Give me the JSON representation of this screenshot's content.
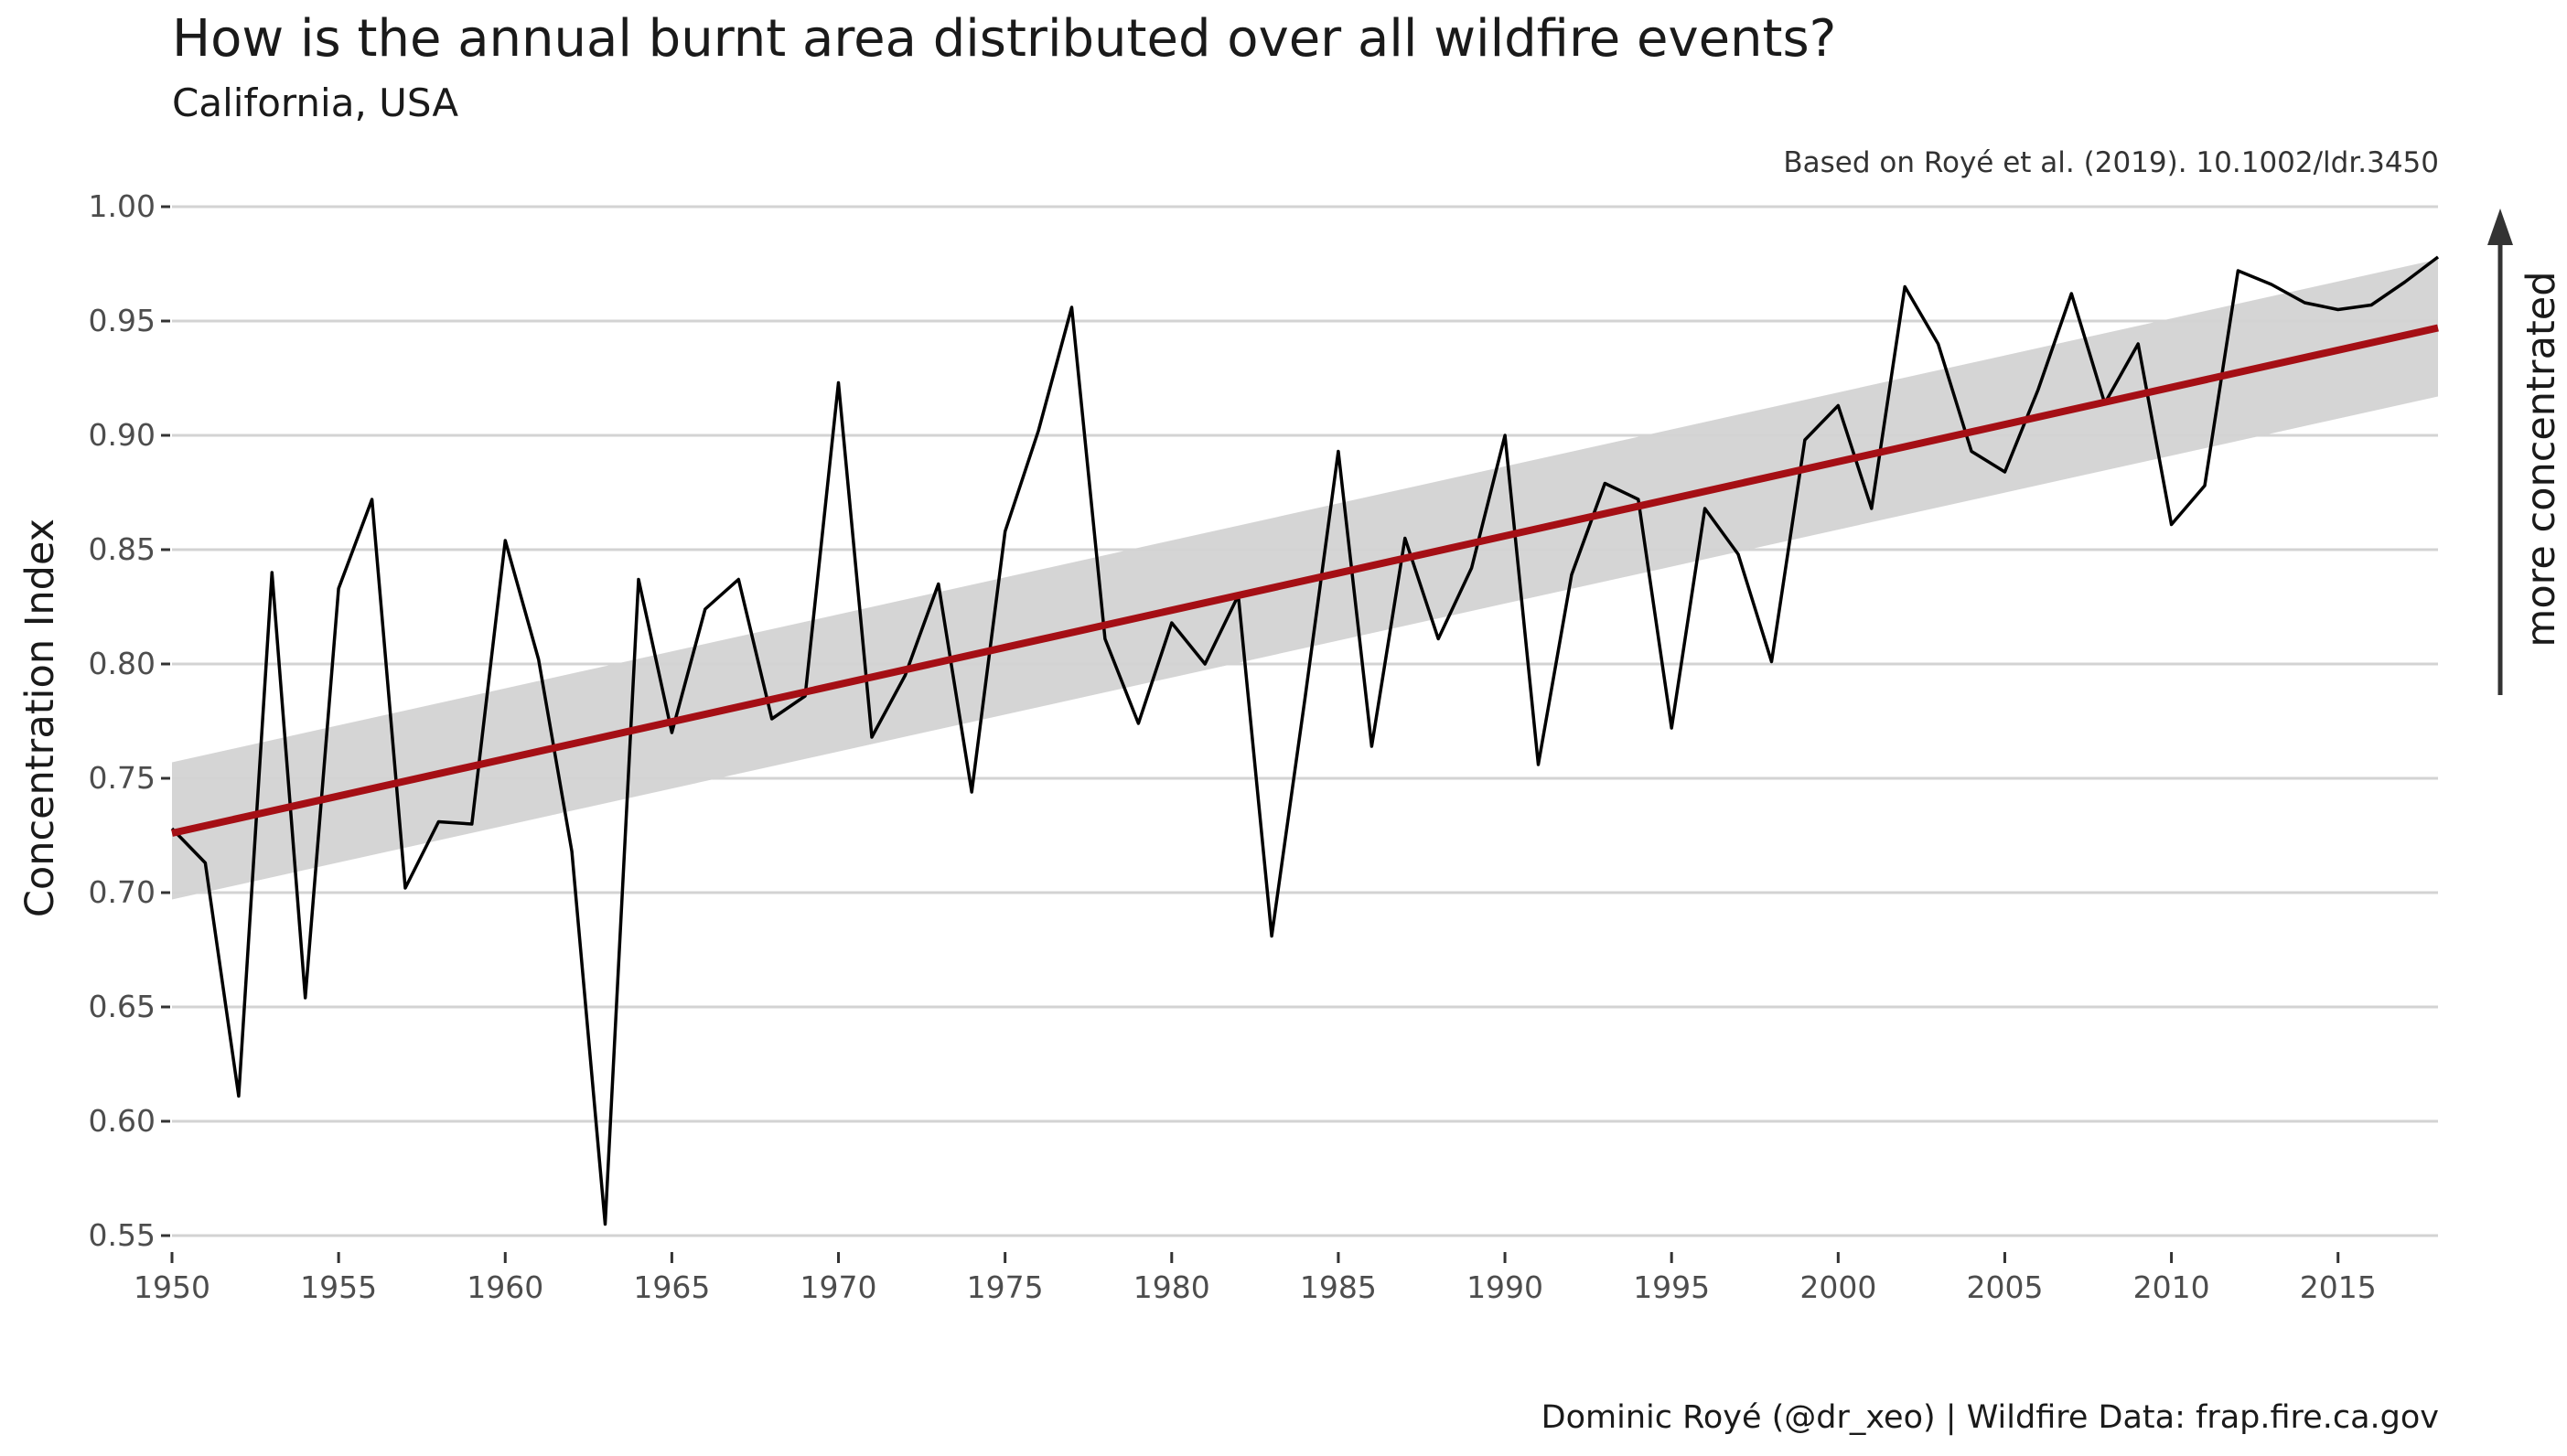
{
  "chart_data": {
    "type": "line",
    "title": "How is the annual burnt area distributed over all wildfire events?",
    "subtitle": "California, USA",
    "source_note": "Based on Royé et al. (2019). 10.1002/ldr.3450",
    "caption": "Dominic Royé (@dr_xeo) | Wildfire Data: frap.fire.ca.gov",
    "xlabel": "",
    "ylabel": "Concentration Index",
    "annotation": "more concentrated",
    "xlim": [
      1950,
      2018
    ],
    "ylim": [
      0.55,
      1.0
    ],
    "x_ticks": [
      1950,
      1955,
      1960,
      1965,
      1970,
      1975,
      1980,
      1985,
      1990,
      1995,
      2000,
      2005,
      2010,
      2015
    ],
    "y_ticks": [
      "0.55",
      "0.60",
      "0.65",
      "0.70",
      "0.75",
      "0.80",
      "0.85",
      "0.90",
      "0.95",
      "1.00"
    ],
    "grid": "horizontal",
    "series": [
      {
        "name": "Concentration Index",
        "color": "#000000",
        "x": [
          1950,
          1951,
          1952,
          1953,
          1954,
          1955,
          1956,
          1957,
          1958,
          1959,
          1960,
          1961,
          1962,
          1963,
          1964,
          1965,
          1966,
          1967,
          1968,
          1969,
          1970,
          1971,
          1972,
          1973,
          1974,
          1975,
          1976,
          1977,
          1978,
          1979,
          1980,
          1981,
          1982,
          1983,
          1984,
          1985,
          1986,
          1987,
          1988,
          1989,
          1990,
          1991,
          1992,
          1993,
          1994,
          1995,
          1996,
          1997,
          1998,
          1999,
          2000,
          2001,
          2002,
          2003,
          2004,
          2005,
          2006,
          2007,
          2008,
          2009,
          2010,
          2011,
          2012,
          2013,
          2014,
          2015,
          2016,
          2017,
          2018
        ],
        "values": [
          0.728,
          0.713,
          0.611,
          0.84,
          0.654,
          0.833,
          0.872,
          0.702,
          0.731,
          0.73,
          0.854,
          0.802,
          0.718,
          0.555,
          0.837,
          0.77,
          0.824,
          0.837,
          0.776,
          0.786,
          0.923,
          0.768,
          0.795,
          0.835,
          0.744,
          0.858,
          0.902,
          0.956,
          0.811,
          0.774,
          0.818,
          0.8,
          0.83,
          0.681,
          0.785,
          0.893,
          0.764,
          0.855,
          0.811,
          0.842,
          0.9,
          0.756,
          0.839,
          0.879,
          0.872,
          0.772,
          0.868,
          0.848,
          0.801,
          0.898,
          0.913,
          0.868,
          0.965,
          0.94,
          0.893,
          0.884,
          0.92,
          0.962,
          0.914,
          0.94,
          0.861,
          0.878,
          0.972,
          0.966,
          0.958,
          0.955,
          0.957,
          0.967,
          0.978
        ]
      }
    ],
    "trend": {
      "name": "Linear trend",
      "color": "#a50f15",
      "x": [
        1950,
        2018
      ],
      "values": [
        0.726,
        0.947
      ],
      "ci_lower": [
        0.697,
        0.917
      ],
      "ci_upper": [
        0.757,
        0.977
      ],
      "ci_color": "#d3d3d3"
    },
    "arrow_color": "#333333",
    "grid_color": "#d3d3d3"
  }
}
